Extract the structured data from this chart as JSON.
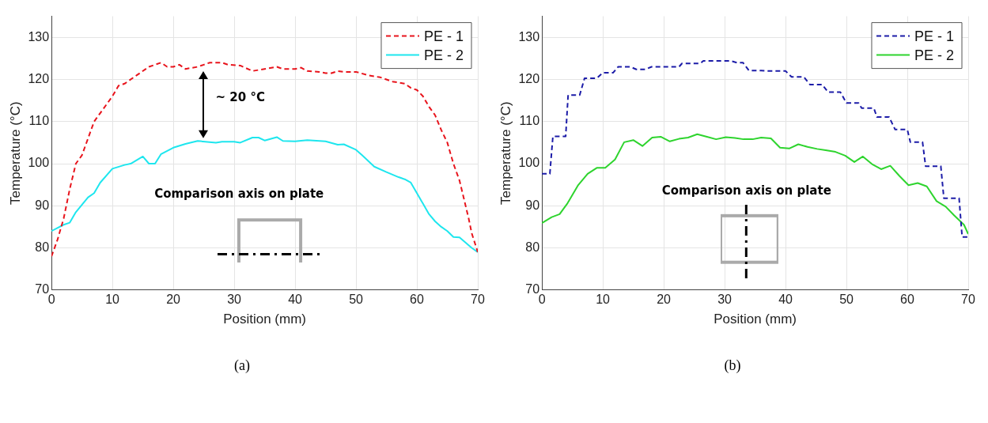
{
  "chart_data": [
    {
      "type": "line",
      "title": "(a)",
      "xlabel": "Position (mm)",
      "ylabel": "Temperature (°C)",
      "xlim": [
        0,
        70
      ],
      "xticks": [
        0,
        10,
        20,
        30,
        40,
        50,
        60,
        70
      ],
      "ylim": [
        70,
        135
      ],
      "yticks": [
        70,
        80,
        90,
        100,
        110,
        120,
        130
      ],
      "grid": true,
      "legend": "top right",
      "marker": "none",
      "annotations": [
        "Comparison axis on plate",
        "~ 20 °C"
      ],
      "series": [
        {
          "name": "PE - 1",
          "color": "#e8141c",
          "line_style": "dashed",
          "x": [
            0,
            1,
            2,
            3,
            4,
            5,
            6,
            7,
            8,
            9,
            10,
            11,
            12,
            14,
            16,
            18,
            19,
            20,
            21,
            22,
            24,
            25,
            26,
            28,
            29,
            31,
            33,
            35,
            37,
            38,
            40,
            41,
            42,
            44,
            45,
            46,
            47,
            48,
            50,
            52,
            54,
            56,
            58,
            59,
            60,
            61,
            62,
            63,
            64,
            65,
            66,
            67,
            68,
            68.5,
            69,
            70
          ],
          "values": [
            78,
            82,
            87,
            94,
            100,
            102,
            106,
            110,
            112,
            114,
            116,
            118.5,
            119,
            121,
            123,
            124,
            123,
            123,
            123.5,
            122.5,
            123,
            123.5,
            124,
            124,
            123.5,
            123.3,
            122,
            122.5,
            123,
            122.5,
            122.5,
            122.8,
            122,
            121.8,
            121.5,
            121.5,
            122,
            121.8,
            121.8,
            121,
            120.5,
            119.5,
            119,
            118,
            117.5,
            116,
            113.5,
            111.5,
            108,
            105,
            100,
            96,
            90,
            87,
            83.5,
            79
          ]
        },
        {
          "name": "PE - 2",
          "color": "#1ee6ee",
          "line_style": "solid",
          "x": [
            0,
            2,
            3,
            4,
            6,
            7,
            8,
            10,
            12,
            13,
            15,
            16,
            17,
            18,
            20,
            22,
            24,
            27,
            28,
            30,
            31,
            33,
            34,
            35,
            37,
            38,
            40,
            42,
            45,
            47,
            48,
            50,
            51,
            53,
            55,
            57,
            58,
            59,
            60,
            61,
            62,
            63,
            64,
            65,
            66,
            67,
            69,
            70
          ],
          "values": [
            84,
            85.5,
            86,
            88.5,
            92,
            93,
            95.5,
            98.8,
            99.7,
            100,
            101.7,
            100,
            100,
            102.3,
            103.8,
            104.7,
            105.4,
            105,
            105.2,
            105.2,
            105,
            106.2,
            106.2,
            105.5,
            106.3,
            105.4,
            105.3,
            105.6,
            105.3,
            104.5,
            104.6,
            103.3,
            102,
            99.3,
            98,
            96.8,
            96.3,
            95.5,
            93,
            90.5,
            88,
            86.3,
            85,
            84,
            82.6,
            82.5,
            80,
            79
          ]
        }
      ]
    },
    {
      "type": "line",
      "title": "(b)",
      "xlabel": "Position (mm)",
      "ylabel": "Temperature (°C)",
      "xlim": [
        0,
        70
      ],
      "xticks": [
        0,
        10,
        20,
        30,
        40,
        50,
        60,
        70
      ],
      "ylim": [
        70,
        135
      ],
      "yticks": [
        70,
        80,
        90,
        100,
        110,
        120,
        130
      ],
      "grid": true,
      "legend": "top right",
      "marker": "none",
      "annotations": [
        "Comparison axis on plate"
      ],
      "series": [
        {
          "name": "PE - 1",
          "color": "#1c1ca8",
          "line_style": "dashed",
          "x": [
            0,
            1.3,
            1.8,
            3.9,
            4.3,
            6.2,
            7,
            9,
            10,
            11.7,
            12.5,
            14.5,
            15.5,
            17,
            18,
            22.5,
            23,
            26,
            26.5,
            31,
            32,
            33,
            34,
            36,
            37,
            40,
            41,
            43,
            44,
            46,
            47,
            49,
            50,
            52,
            52.5,
            54.5,
            55,
            57,
            58,
            60,
            60.5,
            62.5,
            63,
            65.5,
            66,
            68.5,
            69,
            70
          ],
          "values": [
            97.6,
            97.6,
            106.5,
            106.5,
            116.3,
            116.3,
            120.3,
            120.3,
            121.6,
            121.6,
            123,
            123,
            122.4,
            122.4,
            123,
            123,
            123.8,
            123.8,
            124.4,
            124.4,
            124,
            124,
            122.1,
            122.1,
            122,
            122,
            120.6,
            120.6,
            118.8,
            118.8,
            117,
            117,
            114.4,
            114.4,
            113.2,
            113.2,
            111.1,
            111.1,
            108.1,
            108.1,
            105.1,
            105.1,
            99.4,
            99.4,
            91.8,
            91.8,
            82.6,
            82.6
          ]
        },
        {
          "name": "PE - 2",
          "color": "#2ed42e",
          "line_style": "solid",
          "x": [
            0,
            1.6,
            2.9,
            4.2,
            5.9,
            7.5,
            9,
            10.4,
            12,
            13.5,
            15,
            16.5,
            18.1,
            19.5,
            21,
            22.5,
            24,
            25.5,
            27.1,
            28.6,
            30.2,
            31.7,
            33.1,
            34.6,
            36,
            37.6,
            39.1,
            40.6,
            42.1,
            43.6,
            45.2,
            46.6,
            48.2,
            49.8,
            51.3,
            52.7,
            54.2,
            55.7,
            57.2,
            58.7,
            60.2,
            61.7,
            63.2,
            64.8,
            66.3,
            67.7,
            69.3,
            70
          ],
          "values": [
            85.9,
            87.3,
            88,
            90.6,
            94.8,
            97.6,
            99,
            99,
            101,
            105.1,
            105.6,
            104.2,
            106.2,
            106.4,
            105.3,
            105.9,
            106.2,
            107,
            106.4,
            105.8,
            106.3,
            106.1,
            105.8,
            105.8,
            106.2,
            106,
            103.8,
            103.6,
            104.6,
            104,
            103.5,
            103.2,
            102.8,
            101.9,
            100.4,
            101.7,
            99.9,
            98.7,
            99.5,
            97.1,
            94.9,
            95.4,
            94.6,
            91.1,
            89.8,
            87.7,
            85.5,
            83.3
          ]
        }
      ]
    }
  ]
}
